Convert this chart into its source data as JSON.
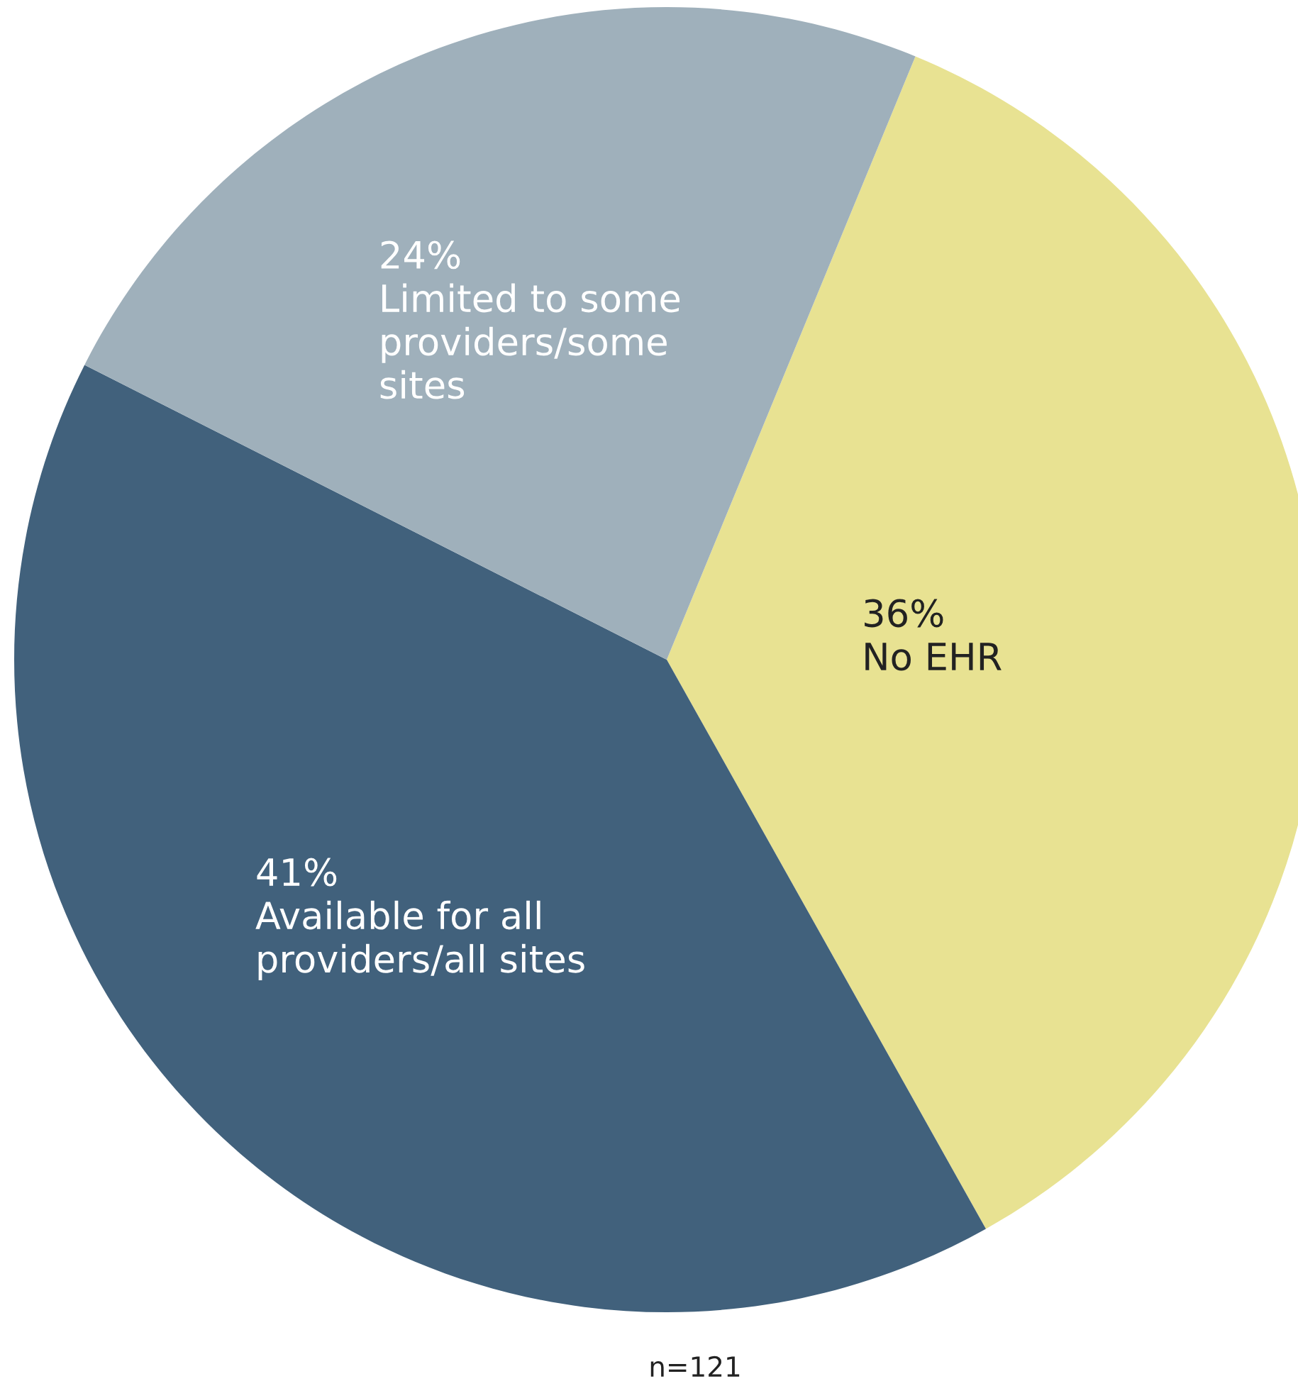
{
  "chart_data": {
    "type": "pie",
    "categories": [
      "No EHR",
      "Available for all\nproviders/all sites",
      "Limited to some\nproviders/some\nsites"
    ],
    "values": [
      36,
      41,
      24
    ],
    "colors": [
      "#e8e292",
      "#41617c",
      "#9fb0bb"
    ],
    "value_labels": [
      "36%",
      "41%",
      "24%"
    ],
    "annotations": [
      "n=121"
    ]
  }
}
